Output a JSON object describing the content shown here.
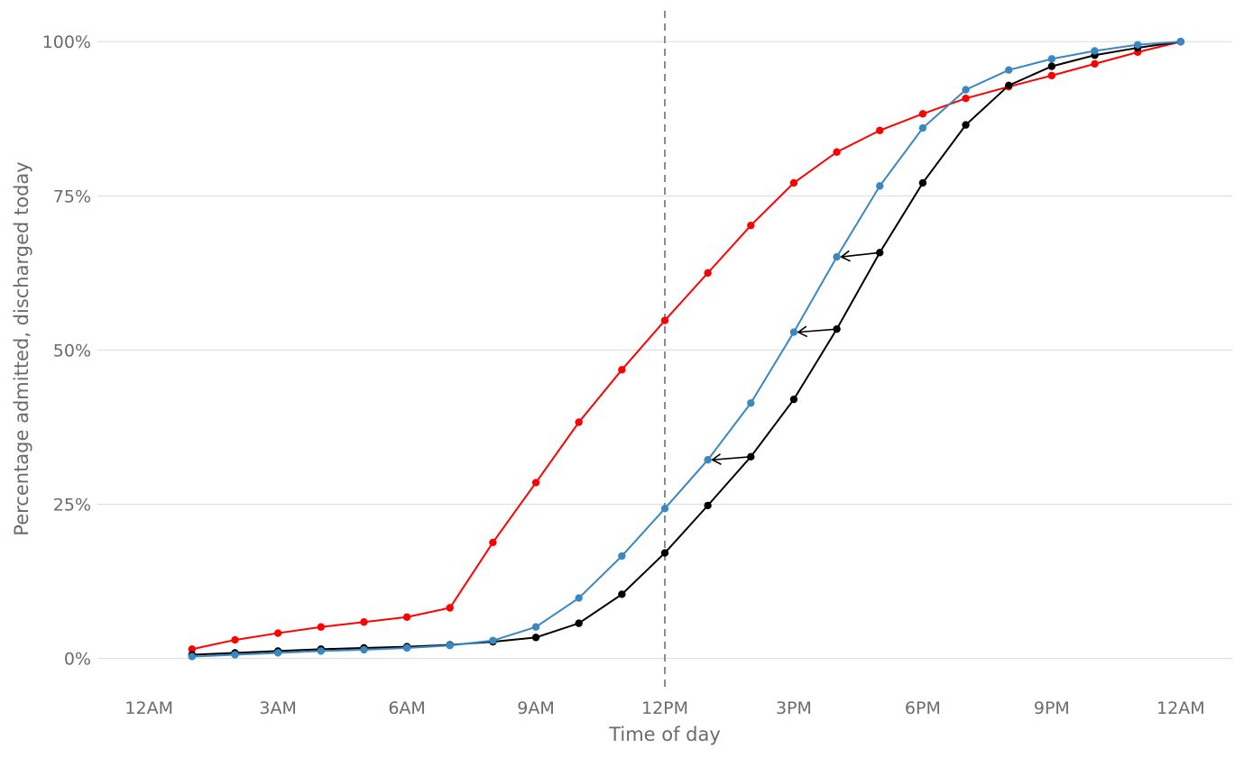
{
  "chart_data": {
    "type": "line",
    "xlabel": "Time of day",
    "ylabel": "Percentage admitted, discharged today",
    "x_ticks": [
      {
        "hour": 0,
        "label": "12AM"
      },
      {
        "hour": 3,
        "label": "3AM"
      },
      {
        "hour": 6,
        "label": "6AM"
      },
      {
        "hour": 9,
        "label": "9AM"
      },
      {
        "hour": 12,
        "label": "12PM"
      },
      {
        "hour": 15,
        "label": "3PM"
      },
      {
        "hour": 18,
        "label": "6PM"
      },
      {
        "hour": 21,
        "label": "9PM"
      },
      {
        "hour": 24,
        "label": "12AM"
      }
    ],
    "y_ticks": [
      {
        "value": 0,
        "label": "0%"
      },
      {
        "value": 25,
        "label": "25%"
      },
      {
        "value": 50,
        "label": "50%"
      },
      {
        "value": 75,
        "label": "75%"
      },
      {
        "value": 100,
        "label": "100%"
      }
    ],
    "xlim": [
      -1.2,
      25.2
    ],
    "ylim": [
      -4,
      105
    ],
    "reference_line_hour": 12,
    "grid": "horizontal",
    "legend": "none",
    "x": [
      1,
      2,
      3,
      4,
      5,
      6,
      7,
      8,
      9,
      10,
      11,
      12,
      13,
      14,
      15,
      16,
      17,
      18,
      19,
      20,
      21,
      22,
      23,
      24
    ],
    "series": [
      {
        "color": "#ff0000",
        "values": [
          1.5,
          3.0,
          4.1,
          5.1,
          5.9,
          6.7,
          8.2,
          18.8,
          28.5,
          38.3,
          46.8,
          54.8,
          62.5,
          70.2,
          77.1,
          82.1,
          85.6,
          88.3,
          90.8,
          92.7,
          94.5,
          96.4,
          98.3,
          100.0
        ]
      },
      {
        "color": "#000000",
        "values": [
          0.6,
          0.9,
          1.2,
          1.5,
          1.7,
          1.9,
          2.2,
          2.7,
          3.4,
          5.7,
          10.4,
          17.1,
          24.8,
          32.7,
          42.0,
          53.4,
          65.8,
          77.1,
          86.5,
          92.9,
          96.0,
          97.8,
          99.0,
          100.0
        ]
      },
      {
        "color": "#3a87c2",
        "values": [
          0.3,
          0.6,
          0.9,
          1.2,
          1.4,
          1.7,
          2.1,
          2.9,
          5.1,
          9.8,
          16.6,
          24.3,
          32.2,
          41.4,
          52.9,
          65.1,
          76.6,
          86.0,
          92.2,
          95.4,
          97.2,
          98.5,
          99.5,
          100.0
        ]
      }
    ],
    "annotations": [
      {
        "type": "arrow",
        "from": [
          14,
          32.7
        ],
        "to": [
          13,
          32.2
        ]
      },
      {
        "type": "arrow",
        "from": [
          16,
          53.4
        ],
        "to": [
          15,
          52.9
        ]
      },
      {
        "type": "arrow",
        "from": [
          17,
          65.8
        ],
        "to": [
          16,
          65.1
        ]
      }
    ]
  }
}
